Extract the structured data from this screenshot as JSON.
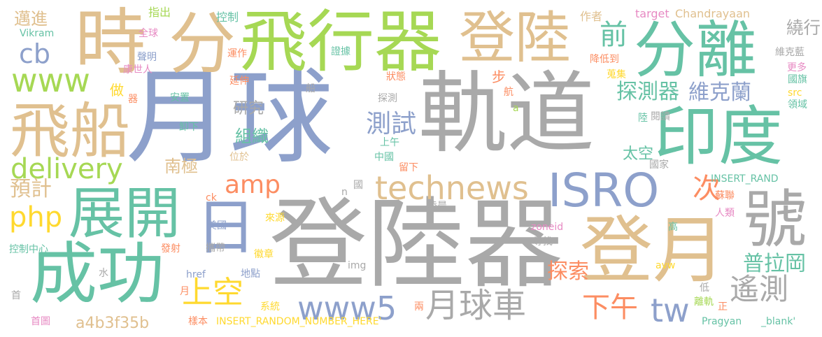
{
  "palette": {
    "gray": "#a9a9a9",
    "sand": "#e0c08f",
    "blue": "#8da0cb",
    "teal": "#66c2a5",
    "green": "#a6d854",
    "orange": "#fc8d62",
    "pink": "#e78ac3",
    "yellow": "#ffd92f"
  },
  "words": [
    {
      "text": "軌道",
      "color": "gray"
    },
    {
      "text": "月球",
      "color": "blue"
    },
    {
      "text": "登陸器",
      "color": "gray"
    },
    {
      "text": "飛行器",
      "color": "green"
    },
    {
      "text": "分",
      "color": "sand"
    },
    {
      "text": "時",
      "color": "sand"
    },
    {
      "text": "登陸",
      "color": "sand"
    },
    {
      "text": "分離",
      "color": "teal"
    },
    {
      "text": "印度",
      "color": "teal"
    },
    {
      "text": "飛船",
      "color": "sand"
    },
    {
      "text": "成功",
      "color": "teal"
    },
    {
      "text": "展開",
      "color": "teal"
    },
    {
      "text": "登月",
      "color": "sand"
    },
    {
      "text": "號",
      "color": "gray"
    },
    {
      "text": "ISRO",
      "color": "blue"
    },
    {
      "text": "日",
      "color": "blue"
    },
    {
      "text": "www",
      "color": "green"
    },
    {
      "text": "technews",
      "color": "sand"
    },
    {
      "text": "delivery",
      "color": "green"
    },
    {
      "text": "www5",
      "color": "blue"
    },
    {
      "text": "月球車",
      "color": "gray"
    },
    {
      "text": "遙測",
      "color": "gray"
    },
    {
      "text": "amp",
      "color": "orange"
    },
    {
      "text": "php",
      "color": "yellow"
    },
    {
      "text": "上空",
      "color": "yellow"
    },
    {
      "text": "下午",
      "color": "orange"
    },
    {
      "text": "tw",
      "color": "blue"
    },
    {
      "text": "cb",
      "color": "blue"
    },
    {
      "text": "探測器",
      "color": "teal"
    },
    {
      "text": "維克蘭",
      "color": "blue"
    },
    {
      "text": "前",
      "color": "teal"
    },
    {
      "text": "測試",
      "color": "blue"
    },
    {
      "text": "普拉岡",
      "color": "teal"
    },
    {
      "text": "探索",
      "color": "orange"
    },
    {
      "text": "南極",
      "color": "sand"
    },
    {
      "text": "組織",
      "color": "teal"
    },
    {
      "text": "次",
      "color": "orange"
    },
    {
      "text": "預計",
      "color": "sand"
    },
    {
      "text": "a4b3f35b",
      "color": "sand"
    },
    {
      "text": "繞行",
      "color": "gray"
    },
    {
      "text": "邁進",
      "color": "sand"
    },
    {
      "text": "做",
      "color": "yellow"
    },
    {
      "text": "研究",
      "color": "gray"
    },
    {
      "text": "步",
      "color": "orange"
    },
    {
      "text": "太空",
      "color": "teal"
    },
    {
      "text": "指出",
      "color": "green"
    },
    {
      "text": "控制",
      "color": "teal"
    },
    {
      "text": "作者",
      "color": "sand"
    },
    {
      "text": "target",
      "color": "pink"
    },
    {
      "text": "Chandrayaan",
      "color": "sand"
    },
    {
      "text": "Vikram",
      "color": "teal"
    },
    {
      "text": "全球",
      "color": "pink"
    },
    {
      "text": "聲明",
      "color": "blue"
    },
    {
      "text": "康世人",
      "color": "pink"
    },
    {
      "text": "運作",
      "color": "orange"
    },
    {
      "text": "證據",
      "color": "teal"
    },
    {
      "text": "狀態",
      "color": "orange"
    },
    {
      "text": "降低到",
      "color": "orange"
    },
    {
      "text": "維克藍",
      "color": "gray"
    },
    {
      "text": "蒐集",
      "color": "yellow"
    },
    {
      "text": "更多",
      "color": "pink"
    },
    {
      "text": "國旗",
      "color": "teal"
    },
    {
      "text": "src",
      "color": "yellow"
    },
    {
      "text": "領域",
      "color": "teal"
    },
    {
      "text": "延伸",
      "color": "orange"
    },
    {
      "text": "船",
      "color": "gray"
    },
    {
      "text": "探測",
      "color": "gray"
    },
    {
      "text": "航",
      "color": "orange"
    },
    {
      "text": "安置",
      "color": "teal"
    },
    {
      "text": "閱讀",
      "color": "gray"
    },
    {
      "text": "陸",
      "color": "teal"
    },
    {
      "text": "卸下",
      "color": "teal"
    },
    {
      "text": "上午",
      "color": "teal"
    },
    {
      "text": "中國",
      "color": "teal"
    },
    {
      "text": "位於",
      "color": "sand"
    },
    {
      "text": "留下",
      "color": "orange"
    },
    {
      "text": "國家",
      "color": "gray"
    },
    {
      "text": "INSERT_RAND",
      "color": "teal"
    },
    {
      "text": "ck",
      "color": "orange"
    },
    {
      "text": "國",
      "color": "gray"
    },
    {
      "text": "n",
      "color": "gray"
    },
    {
      "text": "蘇聯",
      "color": "orange"
    },
    {
      "text": "人類",
      "color": "pink"
    },
    {
      "text": "zoneid",
      "color": "pink"
    },
    {
      "text": "美國",
      "color": "blue"
    },
    {
      "text": "來源",
      "color": "yellow"
    },
    {
      "text": "凌晨",
      "color": "gray"
    },
    {
      "text": "高",
      "color": "teal"
    },
    {
      "text": "控制中心",
      "color": "teal"
    },
    {
      "text": "攜帶",
      "color": "gray"
    },
    {
      "text": "尋找",
      "color": "gray"
    },
    {
      "text": "發射",
      "color": "orange"
    },
    {
      "text": "徽章",
      "color": "yellow"
    },
    {
      "text": "img",
      "color": "gray"
    },
    {
      "text": "avw",
      "color": "yellow"
    },
    {
      "text": "href",
      "color": "blue"
    },
    {
      "text": "水",
      "color": "gray"
    },
    {
      "text": "地點",
      "color": "blue"
    },
    {
      "text": "首",
      "color": "gray"
    },
    {
      "text": "月",
      "color": "orange"
    },
    {
      "text": "低",
      "color": "gray"
    },
    {
      "text": "系統",
      "color": "yellow"
    },
    {
      "text": "兩",
      "color": "orange"
    },
    {
      "text": "離軌",
      "color": "green"
    },
    {
      "text": "正",
      "color": "orange"
    },
    {
      "text": "首圖",
      "color": "pink"
    },
    {
      "text": "樣本",
      "color": "orange"
    },
    {
      "text": "INSERT_RANDOM_NUMBER_HERE'",
      "color": "yellow"
    },
    {
      "text": "Pragyan",
      "color": "teal"
    },
    {
      "text": "_blank'",
      "color": "teal"
    },
    {
      "text": "器",
      "color": "orange"
    },
    {
      "text": "a",
      "color": "green"
    }
  ]
}
